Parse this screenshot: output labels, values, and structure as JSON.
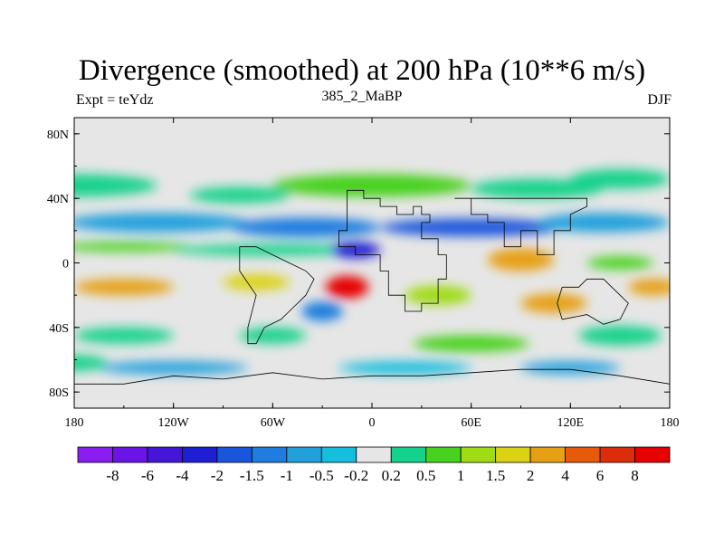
{
  "chart_data": {
    "type": "heatmap",
    "title": "Divergence (smoothed) at 200 hPa (10**6 m/s)",
    "left_label": "Expt = teYdz",
    "center_label": "385_2_MaBP",
    "right_label": "DJF",
    "x_ticks": [
      {
        "value": -180,
        "label": "180"
      },
      {
        "value": -120,
        "label": "120W"
      },
      {
        "value": -60,
        "label": "60W"
      },
      {
        "value": 0,
        "label": "0"
      },
      {
        "value": 60,
        "label": "60E"
      },
      {
        "value": 120,
        "label": "120E"
      },
      {
        "value": 180,
        "label": "180"
      }
    ],
    "y_ticks": [
      {
        "value": 80,
        "label": "80N"
      },
      {
        "value": 40,
        "label": "40N"
      },
      {
        "value": 0,
        "label": "0"
      },
      {
        "value": -40,
        "label": "40S"
      },
      {
        "value": -80,
        "label": "80S"
      }
    ],
    "xlim": [
      -180,
      180
    ],
    "ylim": [
      -90,
      90
    ],
    "colorbar": {
      "levels": [
        "-8",
        "-6",
        "-4",
        "-2",
        "-1.5",
        "-1",
        "-0.5",
        "-0.2",
        "0.2",
        "0.5",
        "1",
        "1.5",
        "2",
        "4",
        "6",
        "8"
      ],
      "colors": [
        "#8a1ef0",
        "#6a14e6",
        "#4416d8",
        "#1e1ed2",
        "#1a56dc",
        "#1f7de0",
        "#22a0dc",
        "#14bedc",
        "#e6e6e6",
        "#14d28c",
        "#46d21e",
        "#a0dc14",
        "#dcd214",
        "#e6a014",
        "#e65a0a",
        "#dc2d0a",
        "#e60000"
      ]
    },
    "features": [
      {
        "lon": -180,
        "lat": 48,
        "w": 100,
        "h": 14,
        "level": 9
      },
      {
        "lon": -80,
        "lat": 42,
        "w": 60,
        "h": 10,
        "level": 9
      },
      {
        "lon": 0,
        "lat": 48,
        "w": 120,
        "h": 14,
        "level": 10
      },
      {
        "lon": 100,
        "lat": 46,
        "w": 80,
        "h": 12,
        "level": 9
      },
      {
        "lon": 150,
        "lat": 52,
        "w": 60,
        "h": 12,
        "level": 9
      },
      {
        "lon": -130,
        "lat": 25,
        "w": 110,
        "h": 12,
        "level": 6
      },
      {
        "lon": -40,
        "lat": 22,
        "w": 90,
        "h": 12,
        "level": 5
      },
      {
        "lon": 60,
        "lat": 22,
        "w": 110,
        "h": 11,
        "level": 4
      },
      {
        "lon": 140,
        "lat": 25,
        "w": 80,
        "h": 12,
        "level": 6
      },
      {
        "lon": -150,
        "lat": 10,
        "w": 80,
        "h": 6,
        "level": 10
      },
      {
        "lon": -60,
        "lat": 8,
        "w": 120,
        "h": 7,
        "level": 9
      },
      {
        "lon": -10,
        "lat": 8,
        "w": 30,
        "h": 10,
        "level": 3
      },
      {
        "lon": 90,
        "lat": 2,
        "w": 40,
        "h": 14,
        "level": 13
      },
      {
        "lon": 150,
        "lat": 0,
        "w": 40,
        "h": 8,
        "level": 10
      },
      {
        "lon": -150,
        "lat": -15,
        "w": 60,
        "h": 10,
        "level": 13
      },
      {
        "lon": -70,
        "lat": -12,
        "w": 40,
        "h": 10,
        "level": 12
      },
      {
        "lon": -15,
        "lat": -15,
        "w": 26,
        "h": 14,
        "level": 16
      },
      {
        "lon": 40,
        "lat": -20,
        "w": 40,
        "h": 12,
        "level": 11
      },
      {
        "lon": 110,
        "lat": -25,
        "w": 40,
        "h": 12,
        "level": 13
      },
      {
        "lon": 170,
        "lat": -15,
        "w": 30,
        "h": 10,
        "level": 13
      },
      {
        "lon": -30,
        "lat": -30,
        "w": 25,
        "h": 12,
        "level": 5
      },
      {
        "lon": -150,
        "lat": -45,
        "w": 60,
        "h": 10,
        "level": 9
      },
      {
        "lon": -60,
        "lat": -45,
        "w": 40,
        "h": 10,
        "level": 9
      },
      {
        "lon": 60,
        "lat": -50,
        "w": 70,
        "h": 10,
        "level": 10
      },
      {
        "lon": 150,
        "lat": -45,
        "w": 50,
        "h": 12,
        "level": 9
      },
      {
        "lon": -120,
        "lat": -65,
        "w": 90,
        "h": 8,
        "level": 6
      },
      {
        "lon": 20,
        "lat": -65,
        "w": 80,
        "h": 8,
        "level": 7
      },
      {
        "lon": 120,
        "lat": -65,
        "w": 60,
        "h": 8,
        "level": 6
      },
      {
        "lon": -180,
        "lat": -62,
        "w": 40,
        "h": 10,
        "level": 9
      }
    ]
  }
}
